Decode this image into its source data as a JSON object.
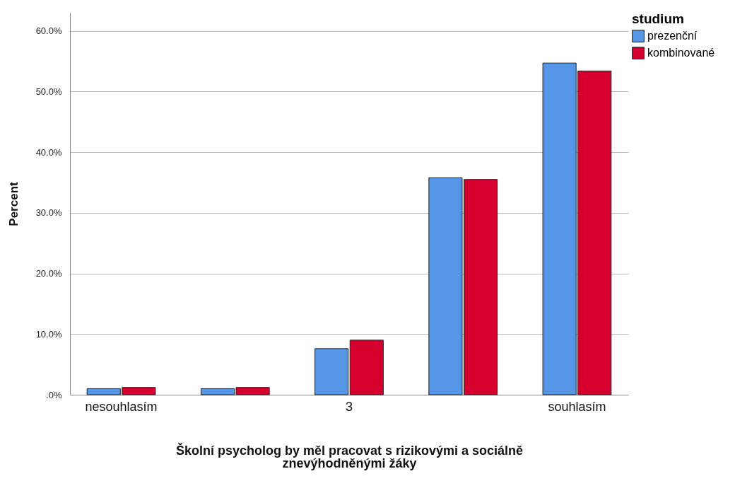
{
  "chart_data": {
    "type": "bar",
    "xlabel": "Školní psycholog by měl pracovat s rizikovými a sociálně znevýhodněnými žáky",
    "ylabel": "Percent",
    "legend_title": "studium",
    "categories": [
      "nesouhlasím",
      null,
      "3",
      null,
      "souhlasím"
    ],
    "series": [
      {
        "name": "prezenční",
        "color": "#5596e6",
        "values": [
          1.0,
          1.0,
          7.6,
          35.8,
          54.7
        ]
      },
      {
        "name": "kombinované",
        "color": "#d6002f",
        "values": [
          1.2,
          1.2,
          9.0,
          35.5,
          53.4
        ]
      }
    ],
    "ylim": [
      0,
      63
    ],
    "yticks": [
      {
        "value": 0,
        "label": ".0%"
      },
      {
        "value": 10,
        "label": "10.0%"
      },
      {
        "value": 20,
        "label": "20.0%"
      },
      {
        "value": 30,
        "label": "30.0%"
      },
      {
        "value": 40,
        "label": "40.0%"
      },
      {
        "value": 50,
        "label": "50.0%"
      },
      {
        "value": 60,
        "label": "60.0%"
      }
    ],
    "grid": "y",
    "legend": "top right"
  }
}
